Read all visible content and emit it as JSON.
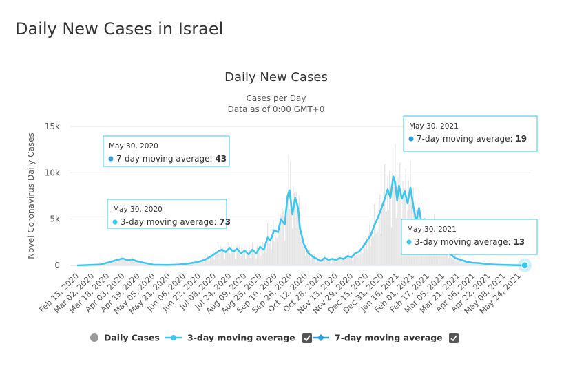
{
  "page": {
    "title": "Daily New Cases in Israel"
  },
  "chart_data": {
    "type": "line",
    "title": "Daily New Cases",
    "subtitle_lines": [
      "Cases per Day",
      "Data as of 0:00 GMT+0"
    ],
    "ylabel": "Novel Coronavirus Daily Cases",
    "xlabel": "",
    "ylim": [
      0,
      15000
    ],
    "y_ticks": [
      0,
      5000,
      10000,
      15000
    ],
    "y_tick_labels": [
      "0",
      "5k",
      "10k",
      "15k"
    ],
    "x_range": [
      "2020-02-15",
      "2021-05-30"
    ],
    "x_tick_labels": [
      "Feb 15, 2020",
      "Mar 02, 2020",
      "Mar 18, 2020",
      "Apr 03, 2020",
      "Apr 19, 2020",
      "May 05, 2020",
      "May 21, 2020",
      "Jun 06, 2020",
      "Jun 22, 2020",
      "Jul 08, 2020",
      "Jul 24, 2020",
      "Aug 09, 2020",
      "Aug 25, 2020",
      "Sep 10, 2020",
      "Sep 26, 2020",
      "Oct 12, 2020",
      "Oct 28, 2020",
      "Nov 13, 2020",
      "Nov 29, 2020",
      "Dec 15, 2020",
      "Dec 31, 2020",
      "Jan 16, 2021",
      "Feb 01, 2021",
      "Feb 17, 2021",
      "Mar 05, 2021",
      "Mar 21, 2021",
      "Apr 06, 2021",
      "Apr 22, 2021",
      "May 08, 2021",
      "May 24, 2021"
    ],
    "grid": true,
    "legend_placement": "bottom",
    "colors": {
      "line": "#3fc6ee",
      "bars": "#e4e4e4",
      "marker_7day": "#2a9fd6",
      "tooltip_border": "#3fc6ee"
    },
    "series": [
      {
        "name": "3-day moving average",
        "points": [
          [
            "2020-02-15",
            0
          ],
          [
            "2020-03-10",
            100
          ],
          [
            "2020-03-20",
            350
          ],
          [
            "2020-03-28",
            600
          ],
          [
            "2020-04-03",
            750
          ],
          [
            "2020-04-08",
            550
          ],
          [
            "2020-04-12",
            650
          ],
          [
            "2020-04-18",
            450
          ],
          [
            "2020-04-25",
            300
          ],
          [
            "2020-05-05",
            80
          ],
          [
            "2020-05-20",
            50
          ],
          [
            "2020-06-01",
            100
          ],
          [
            "2020-06-10",
            200
          ],
          [
            "2020-06-20",
            350
          ],
          [
            "2020-06-28",
            600
          ],
          [
            "2020-07-05",
            1000
          ],
          [
            "2020-07-12",
            1500
          ],
          [
            "2020-07-16",
            1700
          ],
          [
            "2020-07-20",
            1450
          ],
          [
            "2020-07-24",
            1900
          ],
          [
            "2020-07-28",
            1500
          ],
          [
            "2020-08-01",
            1800
          ],
          [
            "2020-08-05",
            1300
          ],
          [
            "2020-08-09",
            1600
          ],
          [
            "2020-08-13",
            1200
          ],
          [
            "2020-08-17",
            1700
          ],
          [
            "2020-08-21",
            1300
          ],
          [
            "2020-08-25",
            2000
          ],
          [
            "2020-08-29",
            1700
          ],
          [
            "2020-09-02",
            3000
          ],
          [
            "2020-09-05",
            2700
          ],
          [
            "2020-09-09",
            3800
          ],
          [
            "2020-09-13",
            3600
          ],
          [
            "2020-09-16",
            5000
          ],
          [
            "2020-09-20",
            4400
          ],
          [
            "2020-09-23",
            7500
          ],
          [
            "2020-09-25",
            8100
          ],
          [
            "2020-09-28",
            5500
          ],
          [
            "2020-10-01",
            7300
          ],
          [
            "2020-10-04",
            6200
          ],
          [
            "2020-10-06",
            4000
          ],
          [
            "2020-10-10",
            2300
          ],
          [
            "2020-10-15",
            1300
          ],
          [
            "2020-10-20",
            900
          ],
          [
            "2020-10-24",
            700
          ],
          [
            "2020-10-28",
            500
          ],
          [
            "2020-11-01",
            800
          ],
          [
            "2020-11-05",
            600
          ],
          [
            "2020-11-09",
            700
          ],
          [
            "2020-11-13",
            600
          ],
          [
            "2020-11-17",
            800
          ],
          [
            "2020-11-21",
            700
          ],
          [
            "2020-11-25",
            1000
          ],
          [
            "2020-11-29",
            900
          ],
          [
            "2020-12-03",
            1300
          ],
          [
            "2020-12-07",
            1500
          ],
          [
            "2020-12-11",
            2000
          ],
          [
            "2020-12-15",
            2600
          ],
          [
            "2020-12-19",
            3200
          ],
          [
            "2020-12-23",
            4300
          ],
          [
            "2020-12-27",
            5200
          ],
          [
            "2020-12-31",
            6300
          ],
          [
            "2021-01-03",
            7200
          ],
          [
            "2021-01-06",
            8200
          ],
          [
            "2021-01-09",
            7300
          ],
          [
            "2021-01-12",
            9600
          ],
          [
            "2021-01-14",
            8900
          ],
          [
            "2021-01-16",
            7000
          ],
          [
            "2021-01-18",
            8600
          ],
          [
            "2021-01-21",
            7200
          ],
          [
            "2021-01-24",
            8000
          ],
          [
            "2021-01-27",
            6700
          ],
          [
            "2021-01-30",
            8400
          ],
          [
            "2021-02-02",
            6400
          ],
          [
            "2021-02-05",
            4700
          ],
          [
            "2021-02-08",
            6200
          ],
          [
            "2021-02-11",
            4300
          ],
          [
            "2021-02-14",
            5000
          ],
          [
            "2021-02-18",
            3700
          ],
          [
            "2021-02-22",
            4200
          ],
          [
            "2021-02-26",
            3200
          ],
          [
            "2021-03-02",
            3000
          ],
          [
            "2021-03-07",
            1900
          ],
          [
            "2021-03-12",
            1300
          ],
          [
            "2021-03-18",
            800
          ],
          [
            "2021-03-24",
            600
          ],
          [
            "2021-03-30",
            400
          ],
          [
            "2021-04-05",
            300
          ],
          [
            "2021-04-12",
            250
          ],
          [
            "2021-04-20",
            150
          ],
          [
            "2021-04-28",
            100
          ],
          [
            "2021-05-08",
            60
          ],
          [
            "2021-05-18",
            30
          ],
          [
            "2021-05-30",
            13
          ]
        ]
      },
      {
        "name": "7-day moving average",
        "last_value": 19
      },
      {
        "name": "Daily Cases"
      }
    ],
    "tooltips": [
      {
        "date": "May 30, 2020",
        "series": "7-day moving average",
        "value": "43"
      },
      {
        "date": "May 30, 2020",
        "series": "3-day moving average",
        "value": "73"
      },
      {
        "date": "May 30, 2021",
        "series": "7-day moving average",
        "value": "19"
      },
      {
        "date": "May 30, 2021",
        "series": "3-day moving average",
        "value": "13"
      }
    ],
    "legend": [
      "Daily Cases",
      "3-day moving average",
      "7-day moving average"
    ],
    "legend_checkboxes": [
      "3-day moving average",
      "7-day moving average"
    ]
  }
}
